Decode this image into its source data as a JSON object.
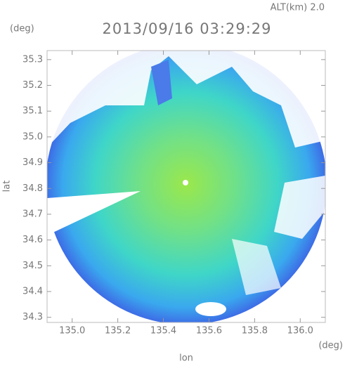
{
  "map": {
    "altitude_label": "ALT(km) 2.0",
    "y_unit": "(deg)",
    "title": "2013/09/16 03:29:29",
    "y_label": "lat",
    "x_label": "lon",
    "x_unit": "(deg)",
    "xlim": [
      134.89,
      136.11
    ],
    "ylim": [
      34.28,
      35.335
    ],
    "xticks": [
      {
        "value": 135.0,
        "label": "135.0"
      },
      {
        "value": 135.2,
        "label": "135.2"
      },
      {
        "value": 135.4,
        "label": "135.4"
      },
      {
        "value": 135.6,
        "label": "135.6"
      },
      {
        "value": 135.8,
        "label": "135.8"
      },
      {
        "value": 136.0,
        "label": "136.0"
      }
    ],
    "yticks": [
      {
        "value": 34.3,
        "label": "34.3"
      },
      {
        "value": 34.4,
        "label": "34.4"
      },
      {
        "value": 34.5,
        "label": "34.5"
      },
      {
        "value": 34.6,
        "label": "34.6"
      },
      {
        "value": 34.7,
        "label": "34.7"
      },
      {
        "value": 34.8,
        "label": "34.8"
      },
      {
        "value": 34.9,
        "label": "34.9"
      },
      {
        "value": 35.0,
        "label": "35.0"
      },
      {
        "value": 35.1,
        "label": "35.1"
      },
      {
        "value": 35.2,
        "label": "35.2"
      },
      {
        "value": 35.3,
        "label": "35.3"
      }
    ]
  }
}
